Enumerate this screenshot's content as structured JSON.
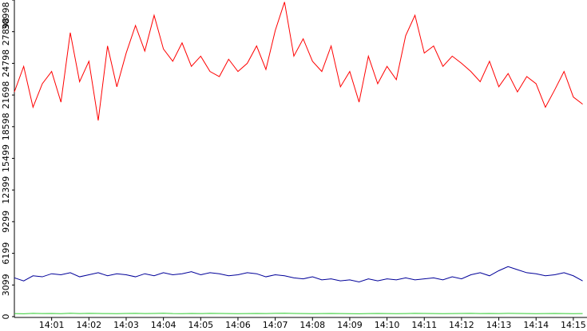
{
  "chart_data": {
    "type": "line",
    "x": [
      0,
      15,
      30,
      45,
      60,
      75,
      90,
      105,
      120,
      135,
      150,
      165,
      180,
      195,
      210,
      225,
      240,
      255,
      270,
      285,
      300,
      315,
      330,
      345,
      360,
      375,
      390,
      405,
      420,
      435,
      450,
      465,
      480,
      495,
      510,
      525,
      540,
      555,
      570,
      585,
      600,
      615,
      630,
      645,
      660,
      675,
      690,
      705,
      720,
      735,
      750,
      765,
      780,
      795,
      810,
      825,
      840,
      855,
      870,
      885,
      900,
      915
    ],
    "series": [
      {
        "color": "#ff0000",
        "values": [
          22000,
          24500,
          20500,
          22800,
          24000,
          21000,
          27800,
          23000,
          25000,
          19200,
          26500,
          22500,
          25800,
          28500,
          26000,
          29500,
          26200,
          25000,
          26800,
          24500,
          25500,
          24000,
          23500,
          25200,
          24000,
          24800,
          26500,
          24200,
          28000,
          30800,
          25500,
          27200,
          25000,
          24000,
          26500,
          22500,
          24000,
          21000,
          25500,
          22800,
          24500,
          23200,
          27500,
          29500,
          25800,
          26500,
          24500,
          25500,
          24800,
          24000,
          23000,
          25000,
          22500,
          23800,
          22000,
          23500,
          22800,
          20500,
          22200,
          24000,
          21500,
          20800
        ]
      },
      {
        "color": "#000099",
        "values": [
          3800,
          3500,
          4000,
          3900,
          4200,
          4100,
          4300,
          3900,
          4100,
          4300,
          4000,
          4200,
          4100,
          3900,
          4200,
          4000,
          4300,
          4100,
          4200,
          4400,
          4100,
          4300,
          4200,
          4000,
          4100,
          4300,
          4200,
          3900,
          4100,
          4000,
          3800,
          3700,
          3900,
          3600,
          3700,
          3500,
          3600,
          3400,
          3700,
          3500,
          3700,
          3600,
          3800,
          3600,
          3700,
          3800,
          3600,
          3900,
          3700,
          4100,
          4300,
          4000,
          4500,
          4900,
          4600,
          4300,
          4200,
          4000,
          4100,
          4300,
          4000,
          3500
        ]
      },
      {
        "color": "#33cc33",
        "values": [
          300,
          280,
          320,
          300,
          310,
          290,
          330,
          300,
          320,
          310,
          300,
          290,
          310,
          320,
          300,
          310,
          330,
          300,
          290,
          310,
          300,
          320,
          310,
          300,
          290,
          300,
          310,
          300,
          320,
          330,
          310,
          300,
          290,
          300,
          310,
          300,
          290,
          280,
          300,
          310,
          300,
          290,
          300,
          320,
          310,
          300,
          290,
          300,
          310,
          320,
          300,
          310,
          300,
          320,
          310,
          300,
          290,
          300,
          310,
          300,
          290,
          300
        ]
      }
    ],
    "xlim": [
      0,
      922
    ],
    "xticks": [
      {
        "value": 60,
        "label": "14:01"
      },
      {
        "value": 120,
        "label": "14:02"
      },
      {
        "value": 180,
        "label": "14:03"
      },
      {
        "value": 240,
        "label": "14:04"
      },
      {
        "value": 300,
        "label": "14:05"
      },
      {
        "value": 360,
        "label": "14:06"
      },
      {
        "value": 420,
        "label": "14:07"
      },
      {
        "value": 480,
        "label": "14:08"
      },
      {
        "value": 540,
        "label": "14:09"
      },
      {
        "value": 600,
        "label": "14:10"
      },
      {
        "value": 660,
        "label": "14:11"
      },
      {
        "value": 720,
        "label": "14:12"
      },
      {
        "value": 780,
        "label": "14:13"
      },
      {
        "value": 840,
        "label": "14:14"
      },
      {
        "value": 900,
        "label": "14:15"
      }
    ],
    "ylim": [
      0,
      30998
    ],
    "yticks": [
      0,
      3099,
      6199,
      9299,
      12399,
      15499,
      18598,
      21698,
      24798,
      27898,
      30998
    ]
  }
}
